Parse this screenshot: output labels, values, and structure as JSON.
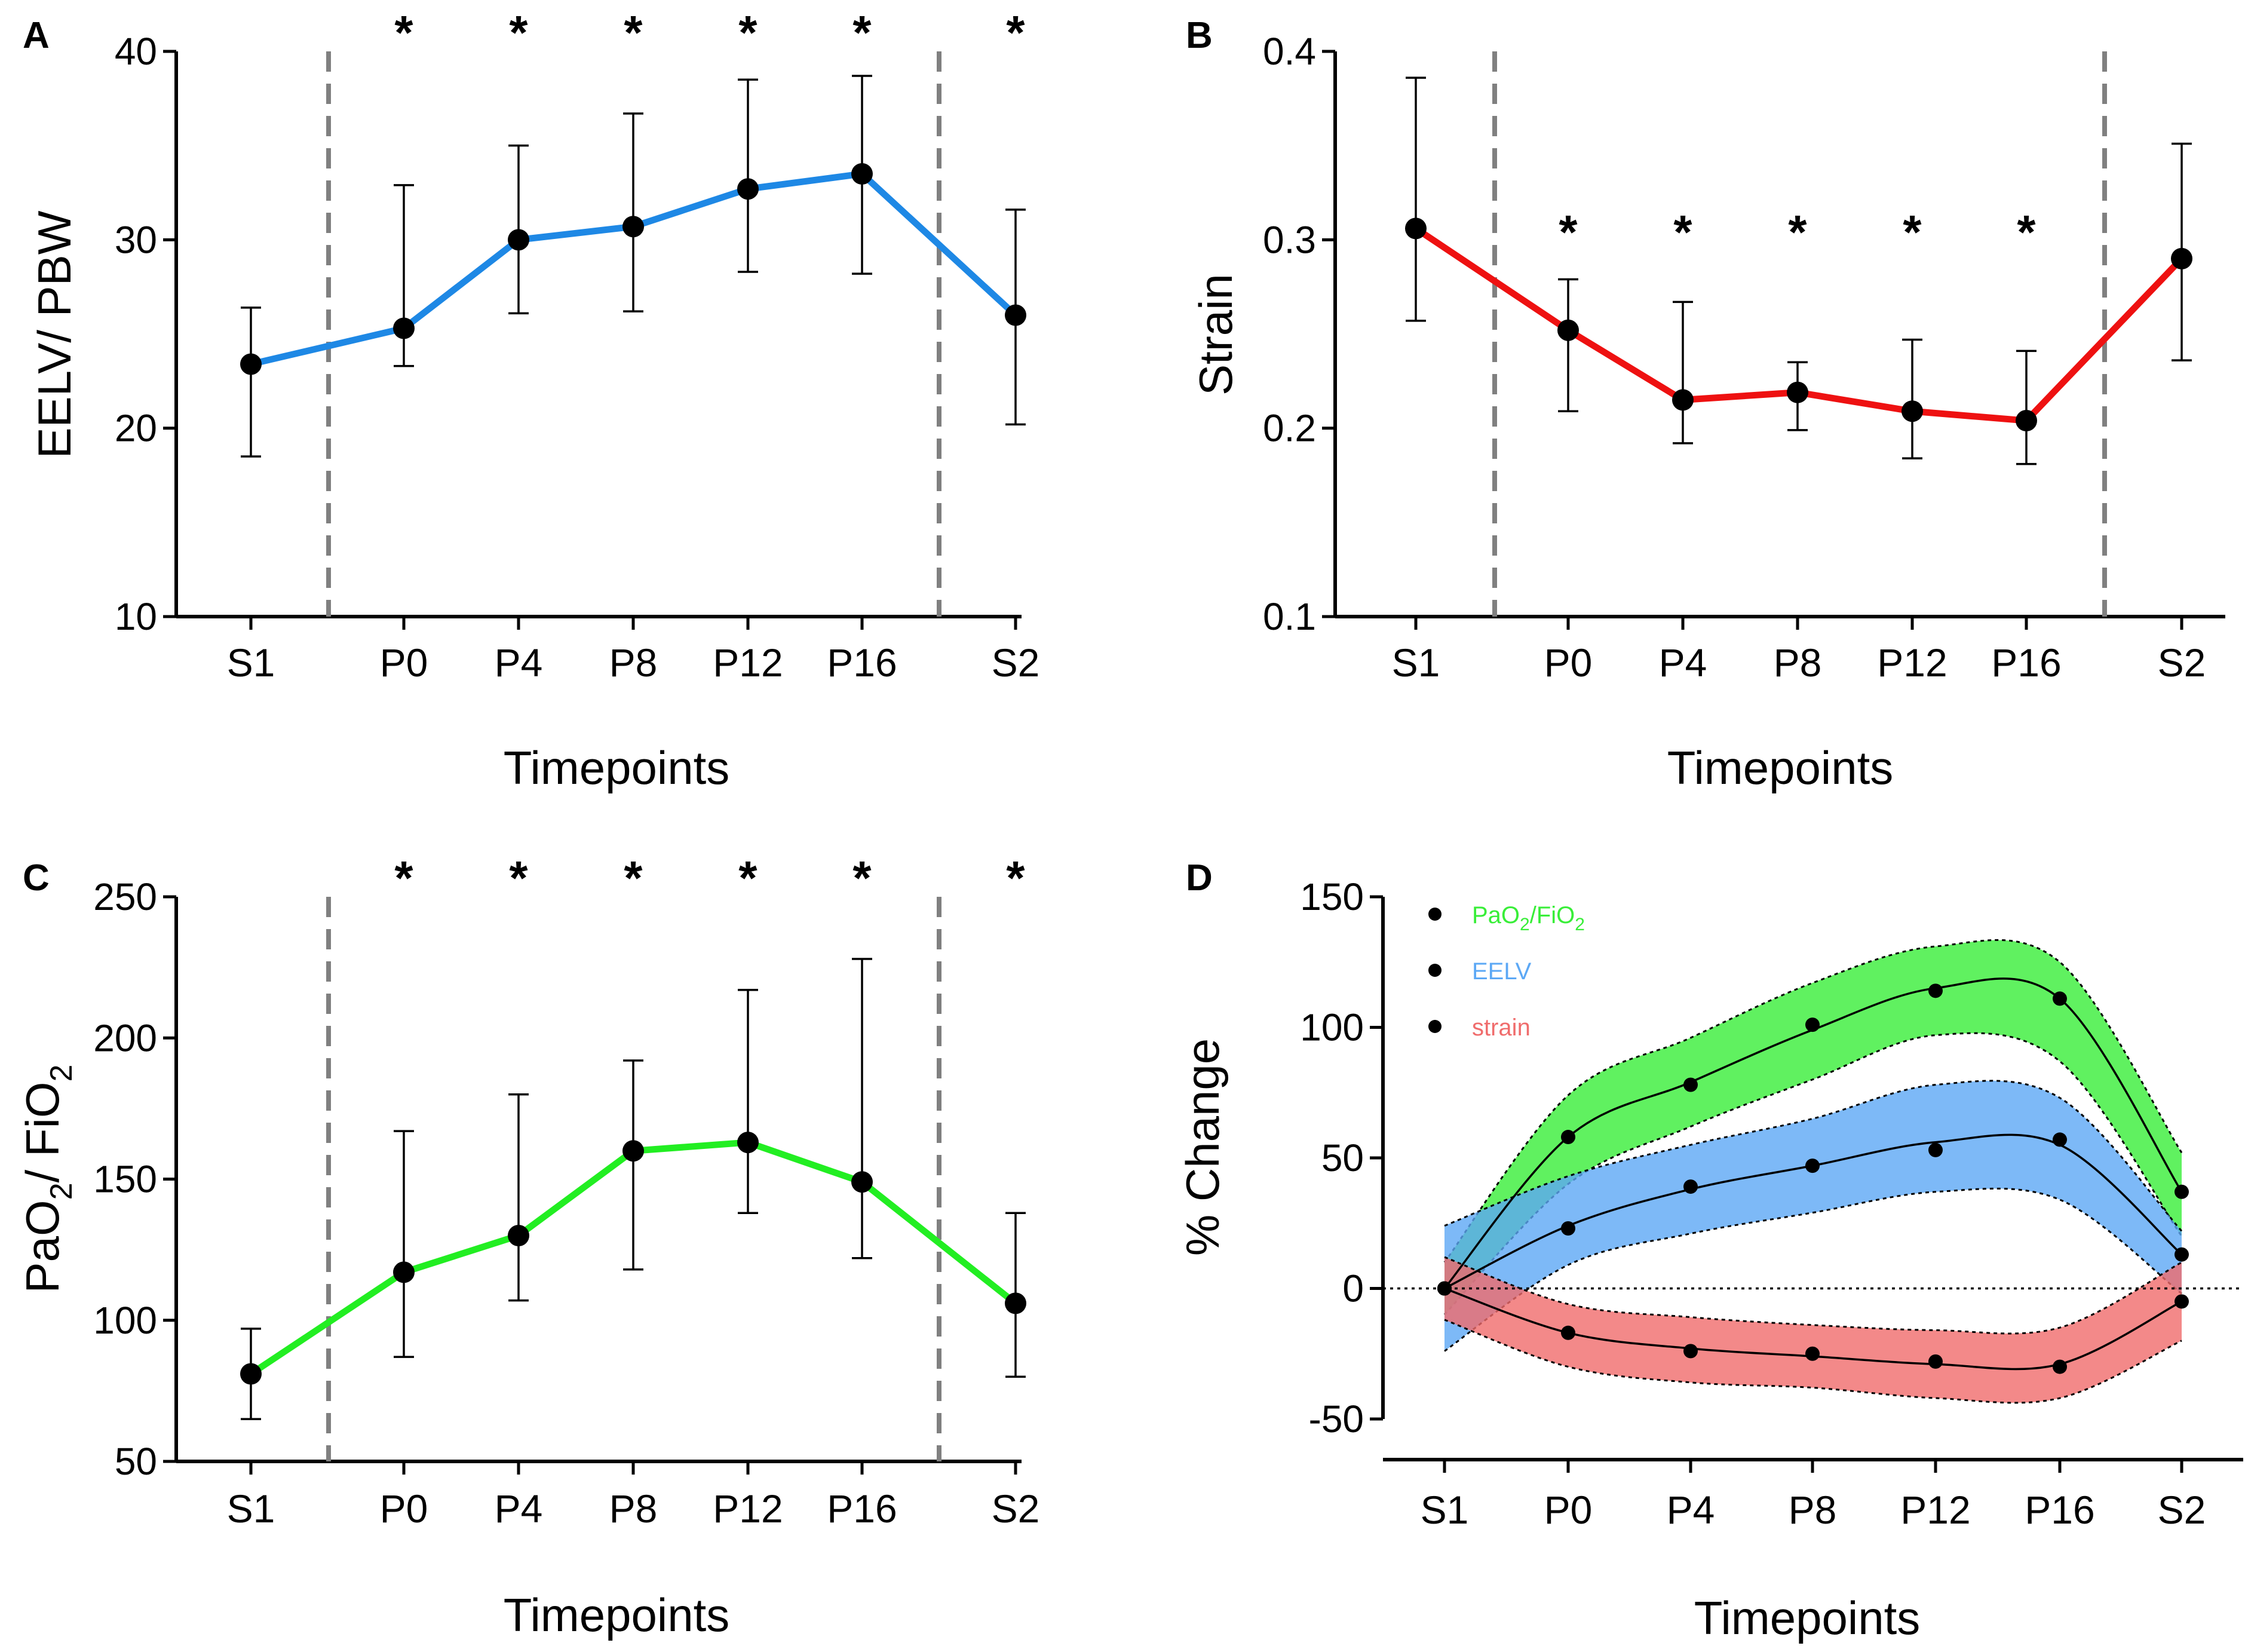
{
  "categories": [
    "S1",
    "P0",
    "P4",
    "P8",
    "P12",
    "P16",
    "S2"
  ],
  "chart_data": [
    {
      "panel": "A",
      "type": "line",
      "xlabel": "Timepoints",
      "ylabel": "EELV/ PBW",
      "ylim": [
        10,
        40
      ],
      "yticks": [
        "10",
        "20",
        "30",
        "40"
      ],
      "color": "#1e88e5",
      "values": [
        23.4,
        25.3,
        30.0,
        30.7,
        32.7,
        33.5,
        26.0
      ],
      "err_upper": [
        26.4,
        32.9,
        35.0,
        36.7,
        38.5,
        38.7,
        31.6
      ],
      "err_lower": [
        18.5,
        23.3,
        26.1,
        26.2,
        28.3,
        28.2,
        20.2
      ],
      "significance": [
        "",
        "*",
        "*",
        "*",
        "*",
        "*",
        "*"
      ]
    },
    {
      "panel": "B",
      "type": "line",
      "xlabel": "Timepoints",
      "ylabel": "Strain",
      "ylim": [
        0.1,
        0.4
      ],
      "yticks": [
        "0.1",
        "0.2",
        "0.3",
        "0.4"
      ],
      "color": "#ee1111",
      "values": [
        0.306,
        0.252,
        0.215,
        0.219,
        0.209,
        0.204,
        0.29
      ],
      "err_upper": [
        0.386,
        0.279,
        0.267,
        0.235,
        0.247,
        0.241,
        0.351
      ],
      "err_lower": [
        0.257,
        0.209,
        0.192,
        0.199,
        0.184,
        0.181,
        0.236
      ],
      "significance": [
        "",
        "*",
        "*",
        "*",
        "*",
        "*",
        ""
      ]
    },
    {
      "panel": "C",
      "type": "line",
      "xlabel": "Timepoints",
      "ylabel_main": "PaO",
      "ylabel_sub1": "2",
      "ylabel_mid": "/ FiO",
      "ylabel_sub2": "2",
      "ylim": [
        50,
        250
      ],
      "yticks": [
        "50",
        "100",
        "150",
        "200",
        "250"
      ],
      "color": "#22ee22",
      "values": [
        81,
        117,
        130,
        160,
        163,
        149,
        106
      ],
      "err_upper": [
        97,
        167,
        180,
        192,
        217,
        228,
        138
      ],
      "err_lower": [
        65,
        87,
        107,
        118,
        138,
        122,
        80
      ],
      "significance": [
        "",
        "*",
        "*",
        "*",
        "*",
        "*",
        "*"
      ]
    },
    {
      "panel": "D",
      "type": "area",
      "xlabel": "Timepoints",
      "ylabel": "% Change",
      "ylim": [
        -50,
        150
      ],
      "yticks": [
        "-50",
        "0",
        "50",
        "100",
        "150"
      ],
      "series": [
        {
          "name": "PaO2/FiO2",
          "legend_main": "PaO",
          "legend_sub1": "2",
          "legend_mid": "/FiO",
          "legend_sub2": "2",
          "color": "#38ee38",
          "points": [
            0,
            58,
            78,
            101,
            114,
            111,
            37
          ],
          "fit": [
            0,
            58,
            79,
            99,
            115,
            111,
            37
          ],
          "band_upper": [
            10,
            74,
            96,
            117,
            131,
            125,
            52
          ],
          "band_lower": [
            -10,
            40,
            62,
            80,
            97,
            87,
            20
          ]
        },
        {
          "name": "EELV",
          "legend_main": "EELV",
          "color": "#5ca8f5",
          "points": [
            0,
            23,
            39,
            47,
            53,
            57,
            13
          ],
          "fit": [
            0,
            24,
            38,
            47,
            56,
            55,
            13
          ],
          "band_upper": [
            24,
            43,
            55,
            65,
            78,
            73,
            22
          ],
          "band_lower": [
            -24,
            9,
            21,
            29,
            37,
            34,
            -2
          ]
        },
        {
          "name": "strain",
          "legend_main": "strain",
          "color": "#f06c6c",
          "points": [
            0,
            -17,
            -24,
            -25,
            -28,
            -30,
            -5
          ],
          "fit": [
            0,
            -17,
            -23,
            -26,
            -29,
            -29,
            -5
          ],
          "band_upper": [
            12,
            -6,
            -11,
            -14,
            -16,
            -15,
            10
          ],
          "band_lower": [
            -12,
            -30,
            -36,
            -38,
            -42,
            -42,
            -20
          ]
        }
      ]
    }
  ]
}
